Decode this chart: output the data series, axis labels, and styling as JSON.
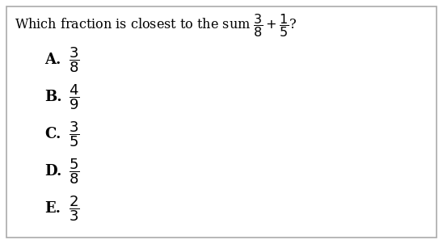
{
  "title_text": "Which fraction is closest to the sum $\\dfrac{3}{8}+\\dfrac{1}{5}$?",
  "options": [
    {
      "label": "A.",
      "fraction": "$\\dfrac{3}{8}$"
    },
    {
      "label": "B.",
      "fraction": "$\\dfrac{4}{9}$"
    },
    {
      "label": "C.",
      "fraction": "$\\dfrac{3}{5}$"
    },
    {
      "label": "D.",
      "fraction": "$\\dfrac{5}{8}$"
    },
    {
      "label": "E.",
      "fraction": "$\\dfrac{2}{3}$"
    }
  ],
  "bg_color": "#ffffff",
  "border_color": "#aaaaaa",
  "text_color": "#000000",
  "font_size_question": 11.5,
  "font_size_options": 13,
  "font_size_label": 13,
  "fig_width": 5.48,
  "fig_height": 3.02,
  "dpi": 100
}
